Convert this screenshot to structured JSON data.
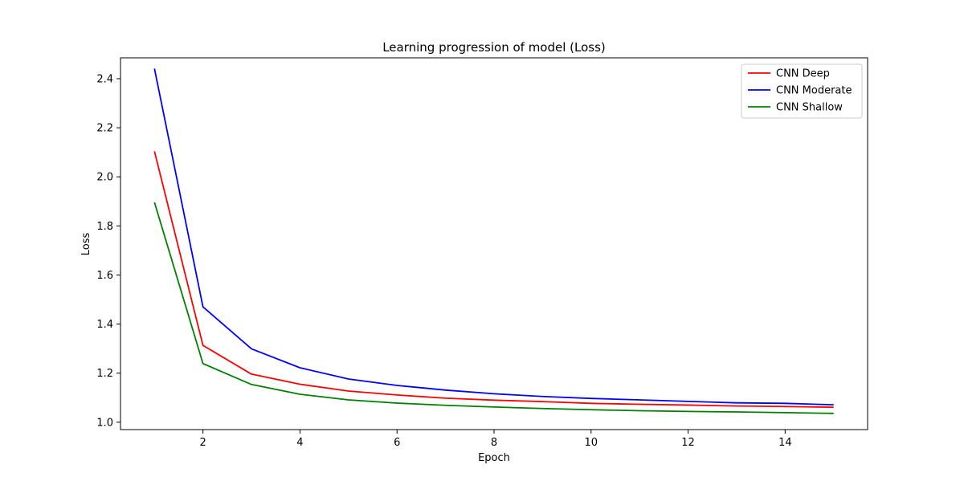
{
  "chart_data": {
    "type": "line",
    "title": "Learning progression of model (Loss)",
    "xlabel": "Epoch",
    "ylabel": "Loss",
    "xlim": [
      0.3,
      15.7
    ],
    "ylim": [
      0.97,
      2.485
    ],
    "x_ticks": [
      2,
      4,
      6,
      8,
      10,
      12,
      14
    ],
    "y_ticks": [
      1.0,
      1.2,
      1.4,
      1.6,
      1.8,
      2.0,
      2.2,
      2.4
    ],
    "grid": false,
    "legend_position": "top-right",
    "x": [
      1,
      2,
      3,
      4,
      5,
      6,
      7,
      8,
      9,
      10,
      11,
      12,
      13,
      14,
      15
    ],
    "series": [
      {
        "name": "CNN Deep",
        "color": "#ff0000",
        "values": [
          2.104,
          1.313,
          1.196,
          1.155,
          1.127,
          1.111,
          1.098,
          1.09,
          1.084,
          1.077,
          1.073,
          1.07,
          1.066,
          1.064,
          1.061
        ]
      },
      {
        "name": "CNN Moderate",
        "color": "#0000ff",
        "values": [
          2.441,
          1.47,
          1.299,
          1.222,
          1.176,
          1.15,
          1.131,
          1.116,
          1.105,
          1.097,
          1.091,
          1.085,
          1.079,
          1.077,
          1.071
        ]
      },
      {
        "name": "CNN Shallow",
        "color": "#008000",
        "values": [
          1.896,
          1.239,
          1.154,
          1.114,
          1.091,
          1.078,
          1.069,
          1.062,
          1.056,
          1.051,
          1.047,
          1.044,
          1.042,
          1.039,
          1.036
        ]
      }
    ]
  }
}
